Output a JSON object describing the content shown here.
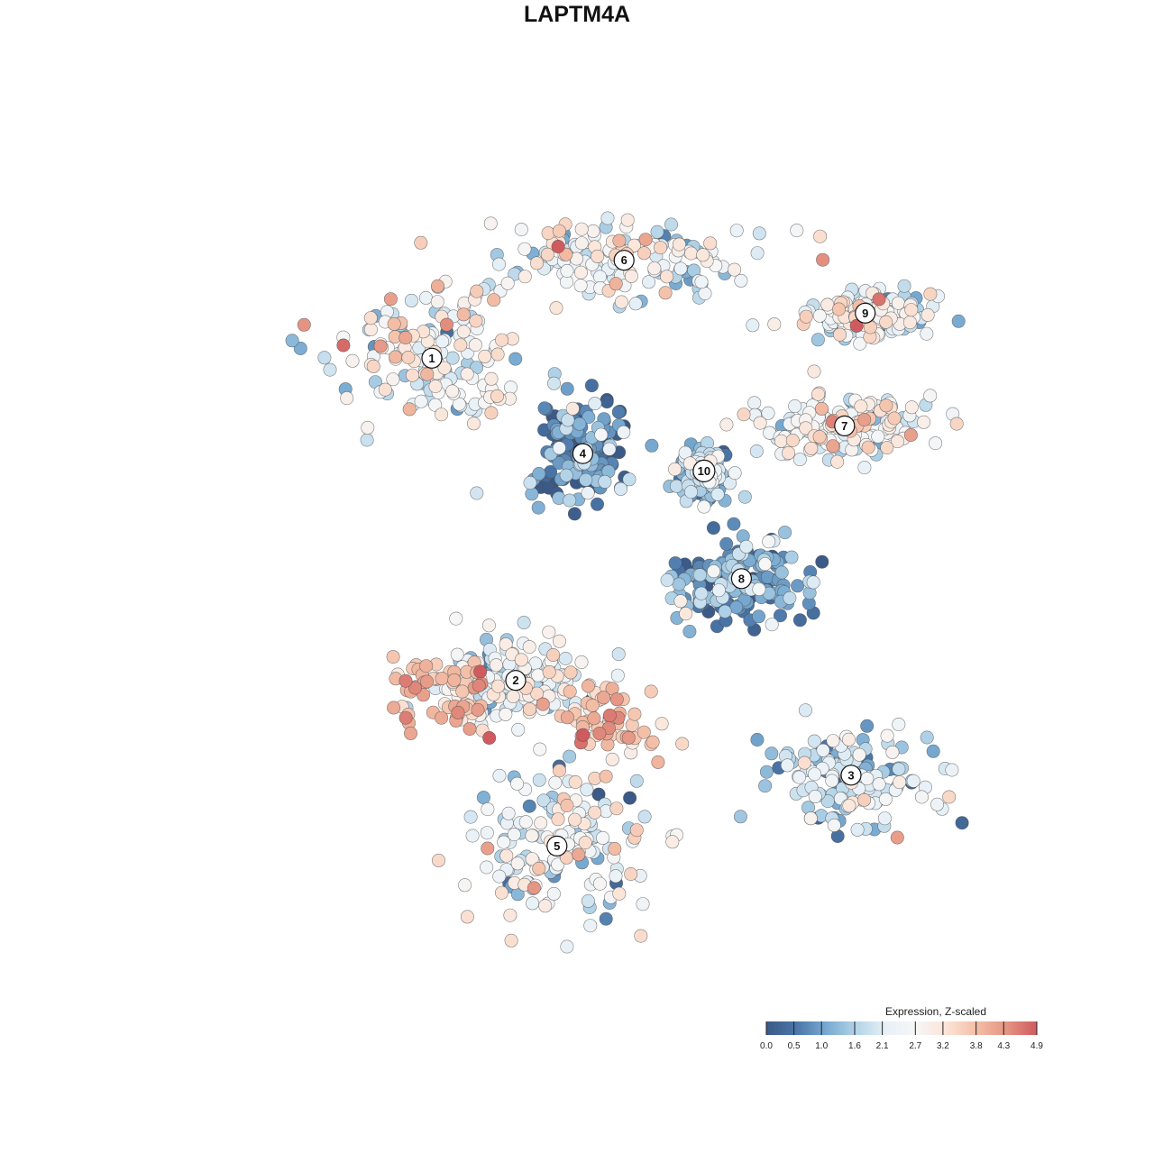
{
  "chart_data": {
    "type": "scatter",
    "title": "LAPTM4A",
    "xlabel": "",
    "ylabel": "",
    "grid": false,
    "legend": {
      "title": "Expression, Z-scaled",
      "placement": "bottom-right",
      "colors": [
        "#3b5a87",
        "#4a76a8",
        "#78aad1",
        "#b3d4e8",
        "#e8f1f7",
        "#f6f6f6",
        "#fbe4d7",
        "#f3bea6",
        "#e49482",
        "#cf5b5f"
      ],
      "ticks": [
        {
          "label": "0.0",
          "value": 0.0
        },
        {
          "label": "0.5",
          "value": 0.5
        },
        {
          "label": "1.0",
          "value": 1.0
        },
        {
          "label": "1.6",
          "value": 1.6
        },
        {
          "label": "2.1",
          "value": 2.1
        },
        {
          "label": "2.7",
          "value": 2.7
        },
        {
          "label": "3.2",
          "value": 3.2
        },
        {
          "label": "3.8",
          "value": 3.8
        },
        {
          "label": "4.3",
          "value": 4.3
        },
        {
          "label": "4.9",
          "value": 4.9
        }
      ],
      "range": [
        0.0,
        4.9
      ]
    },
    "clusters": [
      {
        "label": "1",
        "x": -2.6,
        "y": 2.26,
        "expr_mean": 2.6,
        "spread": [
          1.35,
          1.05
        ]
      },
      {
        "label": "2",
        "x": -1.3,
        "y": -2.74,
        "expr_mean": 2.3,
        "spread": [
          1.05,
          0.55
        ]
      },
      {
        "label": "3",
        "x": 3.9,
        "y": -4.21,
        "expr_mean": 1.8,
        "spread": [
          1.15,
          0.75
        ]
      },
      {
        "label": "4",
        "x": -0.26,
        "y": 0.78,
        "expr_mean": 0.7,
        "spread": [
          0.65,
          0.75
        ]
      },
      {
        "label": "5",
        "x": -0.66,
        "y": -5.31,
        "expr_mean": 2.4,
        "spread": [
          1.25,
          1.05
        ]
      },
      {
        "label": "6",
        "x": 0.38,
        "y": 3.78,
        "expr_mean": 2.5,
        "spread": [
          1.85,
          0.55
        ]
      },
      {
        "label": "7",
        "x": 3.8,
        "y": 1.21,
        "expr_mean": 2.6,
        "spread": [
          1.25,
          0.45
        ]
      },
      {
        "label": "8",
        "x": 2.2,
        "y": -1.16,
        "expr_mean": 1.0,
        "spread": [
          0.95,
          0.65
        ]
      },
      {
        "label": "9",
        "x": 4.12,
        "y": 2.96,
        "expr_mean": 2.3,
        "spread": [
          0.85,
          0.35
        ]
      },
      {
        "label": "10",
        "x": 1.62,
        "y": 0.51,
        "expr_mean": 1.4,
        "spread": [
          0.35,
          0.35
        ]
      }
    ],
    "hotspots": [
      {
        "near": "5",
        "x": 0.2,
        "y": -3.4,
        "expr_mean": 3.6
      },
      {
        "near": "2",
        "x": -2.4,
        "y": -2.9,
        "expr_mean": 3.9
      }
    ],
    "xlim": [
      -6.5,
      6.5
    ],
    "ylim": [
      -7.5,
      5.3
    ]
  }
}
